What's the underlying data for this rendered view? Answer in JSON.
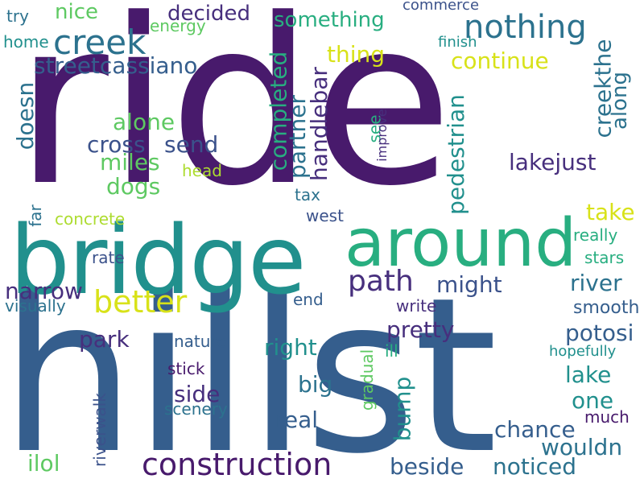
{
  "palette": {
    "deep_purple": "#481a6c",
    "indigo": "#472f7d",
    "slate_blue": "#3b528b",
    "steel_blue": "#355e8d",
    "blue_teal": "#2c728e",
    "teal": "#21908d",
    "sea_green": "#28ae80",
    "green": "#5ec962",
    "lime": "#addc30",
    "yellow": "#d8e219"
  },
  "words": [
    {
      "text": "ride",
      "color": "#481a6c"
    },
    {
      "text": "hillst",
      "color": "#355e8d"
    },
    {
      "text": "bridge",
      "color": "#21908d"
    },
    {
      "text": "around",
      "color": "#28ae80"
    },
    {
      "text": "construction",
      "color": "#481a6c"
    },
    {
      "text": "creek",
      "color": "#2c728e"
    },
    {
      "text": "nothing",
      "color": "#2c728e"
    },
    {
      "text": "path",
      "color": "#472f7d"
    },
    {
      "text": "better",
      "color": "#d8e219"
    },
    {
      "text": "decided",
      "color": "#472f7d"
    },
    {
      "text": "something",
      "color": "#28ae80"
    },
    {
      "text": "nice",
      "color": "#5ec962"
    },
    {
      "text": "try",
      "color": "#2c728e"
    },
    {
      "text": "home",
      "color": "#21908d"
    },
    {
      "text": "energy",
      "color": "#5ec962"
    },
    {
      "text": "commerce",
      "color": "#3b528b"
    },
    {
      "text": "finish",
      "color": "#21908d"
    },
    {
      "text": "streetcassiano",
      "color": "#355e8d"
    },
    {
      "text": "thing",
      "color": "#d8e219"
    },
    {
      "text": "continue",
      "color": "#d8e219"
    },
    {
      "text": "creekthe",
      "color": "#2c728e"
    },
    {
      "text": "along",
      "color": "#2c728e"
    },
    {
      "text": "doesn",
      "color": "#2c728e"
    },
    {
      "text": "alone",
      "color": "#5ec962"
    },
    {
      "text": "cross",
      "color": "#3b528b"
    },
    {
      "text": "send",
      "color": "#3b528b"
    },
    {
      "text": "miles",
      "color": "#5ec962"
    },
    {
      "text": "dogs",
      "color": "#5ec962"
    },
    {
      "text": "completed",
      "color": "#28ae80"
    },
    {
      "text": "partner",
      "color": "#2c728e"
    },
    {
      "text": "handlebar",
      "color": "#472f7d"
    },
    {
      "text": "see",
      "color": "#28ae80"
    },
    {
      "text": "improve",
      "color": "#472f7d"
    },
    {
      "text": "pedestrian",
      "color": "#21908d"
    },
    {
      "text": "lakejust",
      "color": "#472f7d"
    },
    {
      "text": "head",
      "color": "#addc30"
    },
    {
      "text": "tax",
      "color": "#2c728e"
    },
    {
      "text": "far",
      "color": "#2c728e"
    },
    {
      "text": "concrete",
      "color": "#addc30"
    },
    {
      "text": "west",
      "color": "#3b528b"
    },
    {
      "text": "take",
      "color": "#d8e219"
    },
    {
      "text": "really",
      "color": "#28ae80"
    },
    {
      "text": "rate",
      "color": "#3b528b"
    },
    {
      "text": "stars",
      "color": "#28ae80"
    },
    {
      "text": "narrow",
      "color": "#472f7d"
    },
    {
      "text": "visually",
      "color": "#2c728e"
    },
    {
      "text": "might",
      "color": "#3b528b"
    },
    {
      "text": "river",
      "color": "#2c728e"
    },
    {
      "text": "end",
      "color": "#355e8d"
    },
    {
      "text": "write",
      "color": "#472f7d"
    },
    {
      "text": "smooth",
      "color": "#355e8d"
    },
    {
      "text": "pretty",
      "color": "#472f7d"
    },
    {
      "text": "park",
      "color": "#472f7d"
    },
    {
      "text": "nature",
      "color": "#355e8d"
    },
    {
      "text": "right",
      "color": "#21908d"
    },
    {
      "text": "potosi",
      "color": "#355e8d"
    },
    {
      "text": "hopefully",
      "color": "#21908d"
    },
    {
      "text": "ill",
      "color": "#28ae80"
    },
    {
      "text": "gradual",
      "color": "#5ec962"
    },
    {
      "text": "lake",
      "color": "#21908d"
    },
    {
      "text": "stick",
      "color": "#481a6c"
    },
    {
      "text": "big",
      "color": "#2c728e"
    },
    {
      "text": "side",
      "color": "#472f7d"
    },
    {
      "text": "bump",
      "color": "#21908d"
    },
    {
      "text": "one",
      "color": "#21908d"
    },
    {
      "text": "scenery",
      "color": "#2c728e"
    },
    {
      "text": "real",
      "color": "#355e8d"
    },
    {
      "text": "much",
      "color": "#481a6c"
    },
    {
      "text": "chance",
      "color": "#355e8d"
    },
    {
      "text": "riverwalk",
      "color": "#3b528b"
    },
    {
      "text": "wouldn",
      "color": "#2c728e"
    },
    {
      "text": "ilol",
      "color": "#5ec962"
    },
    {
      "text": "beside",
      "color": "#355e8d"
    },
    {
      "text": "noticed",
      "color": "#2c728e"
    }
  ]
}
